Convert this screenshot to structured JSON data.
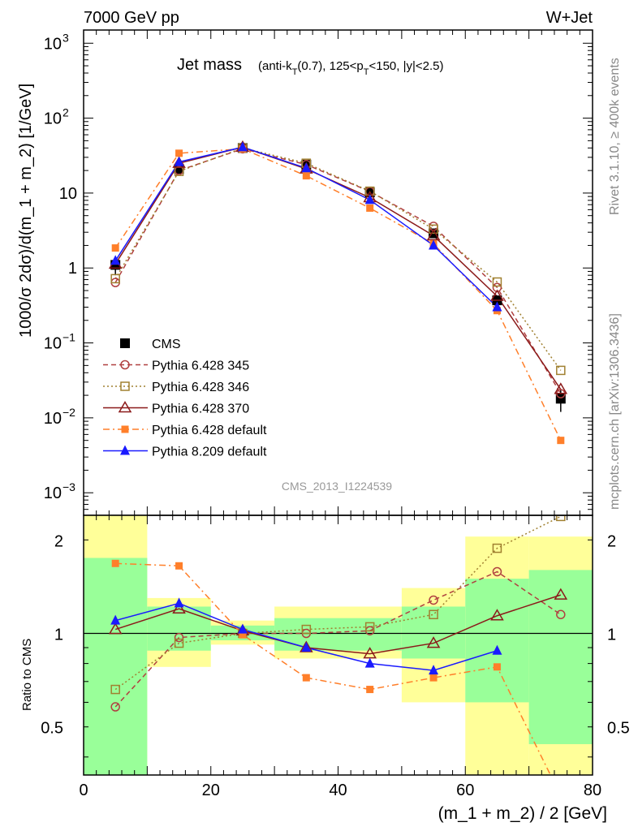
{
  "header": {
    "left": "7000 GeV pp",
    "right": "W+Jet",
    "side_top": "Rivet 3.1.10, ≥ 400k events",
    "side_bottom": "mcplots.cern.ch [arXiv:1306.3436]",
    "watermark": "CMS_2013_I1224539"
  },
  "chart_data": [
    {
      "type": "line",
      "panel": "main",
      "title": "Jet mass",
      "title_detail": "(anti-kT(0.7), 125<pT<150, |y|<2.5)",
      "xlabel": "(m_1 + m_2) / 2 [GeV]",
      "ylabel": "1000/σ 2dσ)/d(m_1 + m_2) [1/GeV]",
      "yscale": "log",
      "xlim": [
        0,
        80
      ],
      "ylim": [
        0.0005,
        1500
      ],
      "yticks": [
        {
          "v": 0.001,
          "label": "10",
          "exp": "−3"
        },
        {
          "v": 0.01,
          "label": "10",
          "exp": "−2"
        },
        {
          "v": 0.1,
          "label": "10",
          "exp": "−1"
        },
        {
          "v": 1,
          "label": "1",
          "exp": ""
        },
        {
          "v": 10,
          "label": "10",
          "exp": ""
        },
        {
          "v": 100,
          "label": "10",
          "exp": "2"
        },
        {
          "v": 1000,
          "label": "10",
          "exp": "3"
        }
      ],
      "legend_position": "center-left",
      "x": [
        5,
        15,
        25,
        35,
        45,
        55,
        65,
        75
      ],
      "series": [
        {
          "name": "CMS",
          "color": "#000000",
          "marker": "filled-square",
          "line": "none",
          "values": [
            1.1,
            21,
            40,
            24,
            10.2,
            2.9,
            0.37,
            0.018
          ],
          "err_up": [
            0.3,
            1.5,
            2.5,
            1.5,
            0.6,
            0.2,
            0.05,
            0.006
          ]
        },
        {
          "name": "Pythia 6.428 345",
          "color": "#b04040",
          "marker": "open-circle",
          "line": "dashed",
          "values": [
            0.64,
            20,
            39,
            24,
            10.5,
            3.6,
            0.55,
            0.021
          ]
        },
        {
          "name": "Pythia 6.428 346",
          "color": "#a08030",
          "marker": "open-square",
          "line": "dotted",
          "values": [
            0.72,
            19.5,
            40,
            25,
            10.6,
            3.3,
            0.65,
            0.043
          ]
        },
        {
          "name": "Pythia 6.428 370",
          "color": "#8b1a1a",
          "marker": "open-triangle",
          "line": "solid",
          "values": [
            1.13,
            25,
            41,
            21,
            8.7,
            2.7,
            0.42,
            0.024
          ]
        },
        {
          "name": "Pythia 6.428 default",
          "color": "#ff7f2a",
          "marker": "filled-square-small",
          "line": "dashdot",
          "values": [
            1.85,
            34,
            39,
            17,
            6.3,
            2.1,
            0.27,
            0.005
          ]
        },
        {
          "name": "Pythia 8.209 default",
          "color": "#1a1aff",
          "marker": "filled-triangle",
          "line": "solid",
          "values": [
            1.25,
            26,
            41,
            21.5,
            8.1,
            2.0,
            0.3,
            null
          ]
        }
      ]
    },
    {
      "type": "line",
      "panel": "ratio",
      "xlabel": "(m_1 + m_2) / 2 [GeV]",
      "ylabel": "Ratio to CMS",
      "yscale": "log",
      "xlim": [
        0,
        80
      ],
      "ylim": [
        0.35,
        2.4
      ],
      "yticks": [
        {
          "v": 0.5,
          "label": "0.5"
        },
        {
          "v": 1,
          "label": "1"
        },
        {
          "v": 2,
          "label": "2"
        }
      ],
      "xticks": [
        0,
        20,
        40,
        60,
        80
      ],
      "bins": [
        [
          0,
          10
        ],
        [
          10,
          20
        ],
        [
          20,
          30
        ],
        [
          30,
          40
        ],
        [
          40,
          50
        ],
        [
          50,
          60
        ],
        [
          60,
          70
        ],
        [
          70,
          80
        ]
      ],
      "band_green": [
        [
          0.35,
          1.75
        ],
        [
          0.88,
          1.22
        ],
        [
          0.95,
          1.06
        ],
        [
          0.88,
          1.12
        ],
        [
          0.88,
          1.12
        ],
        [
          0.83,
          1.22
        ],
        [
          0.6,
          1.5
        ],
        [
          0.44,
          1.6
        ]
      ],
      "band_yellow": [
        [
          0.35,
          2.4
        ],
        [
          0.78,
          1.3
        ],
        [
          0.92,
          1.1
        ],
        [
          0.83,
          1.22
        ],
        [
          0.83,
          1.22
        ],
        [
          0.6,
          1.4
        ],
        [
          0.35,
          2.05
        ],
        [
          0.35,
          2.05
        ]
      ],
      "x": [
        5,
        15,
        25,
        35,
        45,
        55,
        65,
        75
      ],
      "series": [
        {
          "name": "Pythia 6.428 345",
          "color": "#b04040",
          "values": [
            0.58,
            0.97,
            1.0,
            1.0,
            1.02,
            1.28,
            1.58,
            1.15
          ]
        },
        {
          "name": "Pythia 6.428 346",
          "color": "#a08030",
          "values": [
            0.66,
            0.93,
            1.0,
            1.03,
            1.05,
            1.15,
            1.88,
            2.38
          ]
        },
        {
          "name": "Pythia 6.428 370",
          "color": "#8b1a1a",
          "values": [
            1.03,
            1.2,
            1.02,
            0.9,
            0.86,
            0.93,
            1.14,
            1.33
          ]
        },
        {
          "name": "Pythia 6.428 default",
          "color": "#ff7f2a",
          "values": [
            1.68,
            1.65,
            0.99,
            0.72,
            0.66,
            0.72,
            0.78,
            0.3
          ]
        },
        {
          "name": "Pythia 8.209 default",
          "color": "#1a1aff",
          "values": [
            1.1,
            1.25,
            1.03,
            0.9,
            0.8,
            0.76,
            0.88,
            null
          ]
        }
      ]
    }
  ]
}
